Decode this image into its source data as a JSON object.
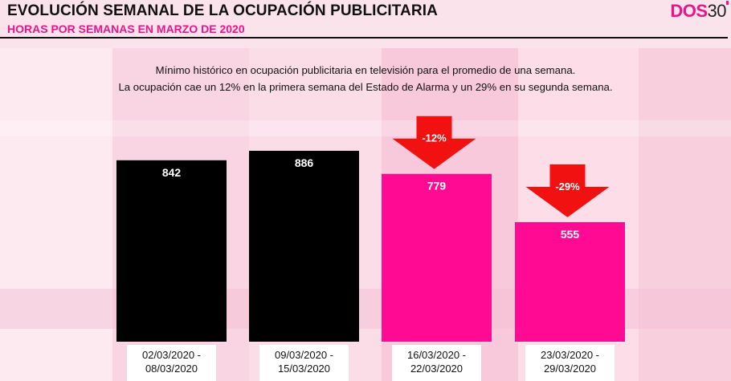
{
  "header": {
    "title": "EVOLUCIÓN SEMANAL DE LA OCUPACIÓN PUBLICITARIA",
    "subtitle": "HORAS POR SEMANAS EN MARZO DE 2020",
    "logo_part1": "DOS",
    "logo_part2": "30"
  },
  "description": {
    "line1": "Mínimo histórico en ocupación publicitaria en televisión para el promedio de una semana.",
    "line2": "La ocupación cae un 12% en la primera semana del Estado de Alarma y un 29% en su segunda semana."
  },
  "colors": {
    "pre_alarm": "#000000",
    "alarm": "#ff0a93",
    "arrow": "#f21111",
    "accent": "#e8168b"
  },
  "chart_data": {
    "type": "bar",
    "categories": [
      [
        "02/03/2020 -",
        "08/03/2020"
      ],
      [
        "09/03/2020 -",
        "15/03/2020"
      ],
      [
        "16/03/2020 -",
        "22/03/2020"
      ],
      [
        "23/03/2020 -",
        "29/03/2020"
      ]
    ],
    "values": [
      842,
      886,
      779,
      555
    ],
    "value_labels": [
      "842",
      "886",
      "779",
      "555"
    ],
    "bar_colors": [
      "#000000",
      "#000000",
      "#ff0a93",
      "#ff0a93"
    ],
    "annotations": [
      {
        "category_index": 2,
        "text": "-12%"
      },
      {
        "category_index": 3,
        "text": "-29%"
      }
    ],
    "title": "",
    "xlabel": "",
    "ylabel": "",
    "ylim": [
      0,
      1000
    ],
    "grid": false,
    "legend": "none"
  }
}
